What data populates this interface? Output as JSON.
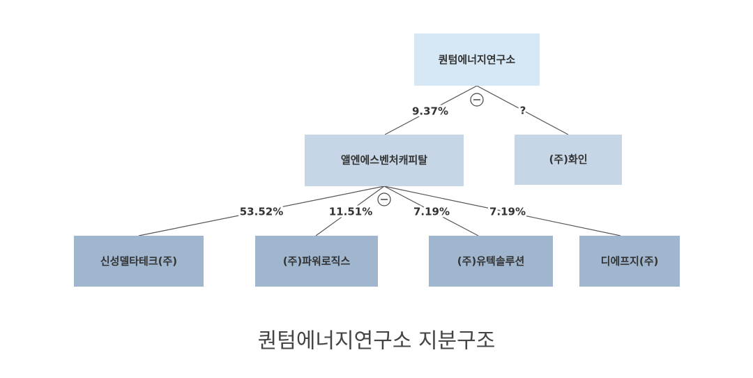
{
  "nodes": [
    {
      "label": "퀀텀에너지연구소"
    },
    {
      "label": "앨엔에스벤처캐피탈"
    },
    {
      "label": "(주)화인"
    },
    {
      "label": "신성델타테크(주)"
    },
    {
      "label": "(주)파워로직스"
    },
    {
      "label": "(주)유텍솔루션"
    },
    {
      "label": "디에프지(주)"
    }
  ],
  "edges": [
    {
      "label": "9.37%"
    },
    {
      "label": "?"
    },
    {
      "label": "53.52%"
    },
    {
      "label": "11.51%"
    },
    {
      "label": "7.19%"
    },
    {
      "label": "7.19%"
    }
  ],
  "caption": "퀀텀에너지연구소 지분구조"
}
